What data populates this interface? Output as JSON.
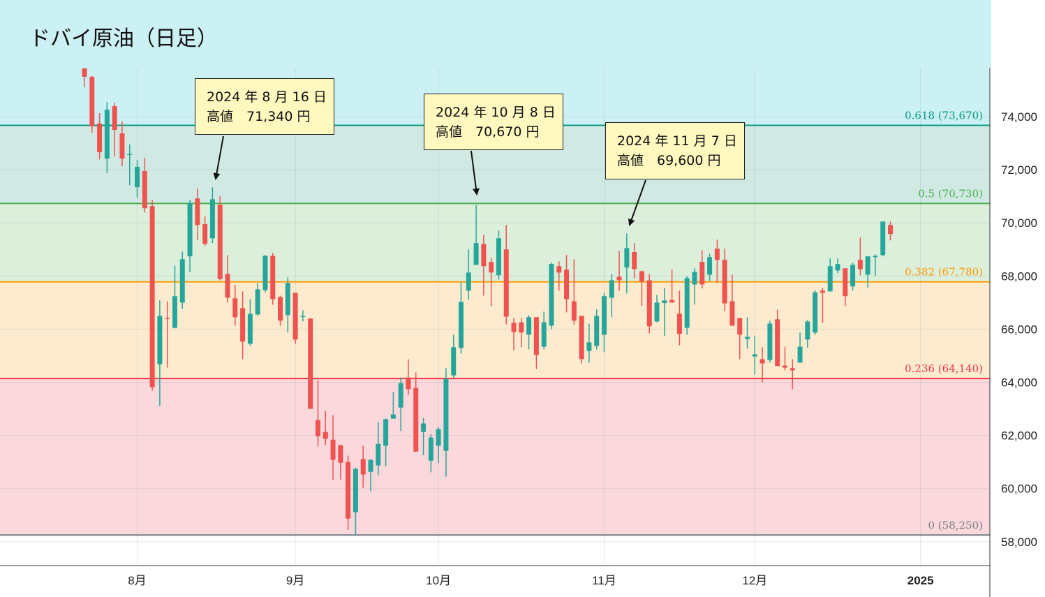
{
  "title": "ドバイ原油（日足）",
  "chart_data": {
    "type": "candlestick",
    "title": "ドバイ原油（日足）",
    "colors": {
      "up": "#26A69A",
      "down": "#EF5350"
    },
    "y_ticks": [
      58000,
      60000,
      62000,
      64000,
      66000,
      68000,
      70000,
      72000,
      74000
    ],
    "y_tick_labels": [
      "58,000",
      "60,000",
      "62,000",
      "64,000",
      "66,000",
      "68,000",
      "70,000",
      "72,000",
      "74,000"
    ],
    "ylim": [
      57000,
      76300
    ],
    "x_ticks": [
      {
        "label": "8月",
        "index": 7
      },
      {
        "label": "9月",
        "index": 28
      },
      {
        "label": "10月",
        "index": 47
      },
      {
        "label": "11月",
        "index": 69
      },
      {
        "label": "12月",
        "index": 89
      },
      {
        "label": "2025",
        "index": 111
      }
    ],
    "grid": true,
    "candle_fields": [
      "open",
      "high",
      "low",
      "close"
    ],
    "candles": [
      [
        75820,
        75820,
        75110,
        75500
      ],
      [
        75500,
        75530,
        73390,
        73630
      ],
      [
        73740,
        74130,
        72390,
        72660
      ],
      [
        72420,
        74550,
        71870,
        74260
      ],
      [
        74390,
        74530,
        72500,
        73500
      ],
      [
        73370,
        73820,
        72130,
        72420
      ],
      [
        72580,
        72950,
        71420,
        72600
      ],
      [
        71340,
        72370,
        70950,
        72110
      ],
      [
        71950,
        72450,
        70390,
        70550
      ],
      [
        70630,
        70870,
        63680,
        63820
      ],
      [
        64680,
        67080,
        63110,
        66500
      ],
      [
        66420,
        67050,
        64550,
        66400
      ],
      [
        66050,
        68390,
        66030,
        67240
      ],
      [
        67000,
        68920,
        66760,
        68630
      ],
      [
        68740,
        70870,
        68160,
        70740
      ],
      [
        70920,
        71290,
        69340,
        69920
      ],
      [
        69950,
        70240,
        69130,
        69210
      ],
      [
        69420,
        71340,
        69240,
        70890
      ],
      [
        70680,
        71000,
        67840,
        67890
      ],
      [
        68080,
        68790,
        67000,
        67180
      ],
      [
        67160,
        67660,
        66130,
        66450
      ],
      [
        66790,
        67420,
        64870,
        65530
      ],
      [
        65450,
        67130,
        65370,
        66580
      ],
      [
        66550,
        67740,
        66500,
        67500
      ],
      [
        67470,
        68790,
        67370,
        68760
      ],
      [
        68760,
        68870,
        66920,
        67130
      ],
      [
        67210,
        67260,
        66130,
        66320
      ],
      [
        66530,
        67950,
        65870,
        67740
      ],
      [
        67370,
        67370,
        65450,
        65610
      ],
      [
        66480,
        66710,
        66290,
        66500
      ],
      [
        66400,
        66400,
        63000,
        63000
      ],
      [
        62580,
        64080,
        61580,
        61970
      ],
      [
        62130,
        62920,
        61630,
        61870
      ],
      [
        61840,
        62760,
        60320,
        61080
      ],
      [
        61630,
        61660,
        60340,
        60970
      ],
      [
        61000,
        61240,
        58450,
        58870
      ],
      [
        59110,
        60790,
        58250,
        60740
      ],
      [
        61110,
        61610,
        60030,
        60530
      ],
      [
        60630,
        61110,
        59900,
        61080
      ],
      [
        60870,
        62500,
        60500,
        61680
      ],
      [
        61610,
        62630,
        60840,
        62610
      ],
      [
        62630,
        63630,
        62630,
        62790
      ],
      [
        63050,
        64180,
        62160,
        63970
      ],
      [
        64180,
        64870,
        63530,
        63740
      ],
      [
        63790,
        64370,
        61390,
        61390
      ],
      [
        62130,
        62660,
        61260,
        62450
      ],
      [
        61050,
        62050,
        60610,
        61920
      ],
      [
        61610,
        62320,
        60970,
        62240
      ],
      [
        61420,
        64530,
        60450,
        64130
      ],
      [
        64260,
        65790,
        64160,
        65320
      ],
      [
        65290,
        67760,
        65080,
        67030
      ],
      [
        67450,
        69000,
        67110,
        68130
      ],
      [
        68420,
        70670,
        68420,
        69240
      ],
      [
        69210,
        69550,
        67260,
        68370
      ],
      [
        68530,
        68680,
        66870,
        68130
      ],
      [
        68030,
        69710,
        67870,
        69420
      ],
      [
        69000,
        69920,
        66180,
        66470
      ],
      [
        66240,
        66420,
        65210,
        65890
      ],
      [
        66260,
        66420,
        65320,
        65870
      ],
      [
        65790,
        66530,
        65240,
        66450
      ],
      [
        66450,
        66450,
        64500,
        65030
      ],
      [
        65340,
        66660,
        65240,
        66260
      ],
      [
        66130,
        68500,
        66000,
        68450
      ],
      [
        68370,
        68550,
        67450,
        68130
      ],
      [
        68240,
        68790,
        66630,
        67130
      ],
      [
        67050,
        68630,
        66160,
        66320
      ],
      [
        66500,
        66500,
        64710,
        64870
      ],
      [
        65180,
        66210,
        64740,
        65500
      ],
      [
        65370,
        66740,
        65240,
        66500
      ],
      [
        65790,
        67370,
        65130,
        67240
      ],
      [
        67180,
        68080,
        66450,
        67840
      ],
      [
        67970,
        68950,
        67450,
        67840
      ],
      [
        68320,
        69600,
        67340,
        69050
      ],
      [
        68900,
        69240,
        67920,
        68260
      ],
      [
        68180,
        68210,
        66870,
        67790
      ],
      [
        67840,
        68080,
        65840,
        66110
      ],
      [
        66290,
        67290,
        66260,
        67000
      ],
      [
        66980,
        67550,
        65740,
        67080
      ],
      [
        67100,
        68240,
        67000,
        67000
      ],
      [
        66580,
        67450,
        65390,
        65820
      ],
      [
        66050,
        68000,
        65790,
        67920
      ],
      [
        67680,
        68290,
        66920,
        68160
      ],
      [
        68530,
        68970,
        67530,
        67680
      ],
      [
        68050,
        68840,
        67820,
        68710
      ],
      [
        69030,
        69370,
        67740,
        68610
      ],
      [
        68610,
        69030,
        66680,
        66970
      ],
      [
        67050,
        68050,
        66130,
        66130
      ],
      [
        66420,
        66420,
        64870,
        65790
      ],
      [
        65630,
        66450,
        65260,
        65710
      ],
      [
        64970,
        65760,
        64290,
        65050
      ],
      [
        64870,
        65320,
        64000,
        64710
      ],
      [
        64840,
        66320,
        64740,
        66210
      ],
      [
        66370,
        66740,
        64610,
        64610
      ],
      [
        64630,
        65340,
        64450,
        64550
      ],
      [
        64530,
        64870,
        63740,
        64450
      ],
      [
        64740,
        65870,
        64740,
        65340
      ],
      [
        65610,
        66340,
        65290,
        66290
      ],
      [
        65870,
        67470,
        65790,
        67390
      ],
      [
        67450,
        67550,
        66240,
        67370
      ],
      [
        67420,
        68660,
        67420,
        68370
      ],
      [
        68210,
        68660,
        68110,
        68450
      ],
      [
        68290,
        68290,
        66870,
        67240
      ],
      [
        67610,
        68500,
        67450,
        68420
      ],
      [
        68610,
        69450,
        68030,
        68260
      ],
      [
        68050,
        68740,
        67550,
        68740
      ],
      [
        68710,
        68810,
        68000,
        68760
      ],
      [
        68790,
        70050,
        68740,
        70050
      ],
      [
        69920,
        70050,
        69340,
        69580
      ]
    ],
    "fib_levels": [
      {
        "ratio": "0.618",
        "value": 73670,
        "label": "0.618 (73,670)",
        "color": "#089981",
        "fill": "#D0EAE3"
      },
      {
        "ratio": "0.5",
        "value": 70730,
        "label": "0.5 (70,730)",
        "color": "#4CAF50",
        "fill": "#DCEFDB"
      },
      {
        "ratio": "0.382",
        "value": 67780,
        "label": "0.382 (67,780)",
        "color": "#FF9800",
        "fill": "#FDEBD0"
      },
      {
        "ratio": "0.236",
        "value": 64140,
        "label": "0.236 (64,140)",
        "color": "#F23645",
        "fill": "#FAD8DC"
      },
      {
        "ratio": "0",
        "value": 58250,
        "label": "0 (58,250)",
        "color": "#787B86",
        "fill": "#FFFFFF"
      }
    ],
    "top_band_fill": "#CCF1F4",
    "annotations": [
      {
        "line1": "2024 年 8 月 16 日",
        "line2": "高値　71,340 円",
        "candle": 17,
        "value": 71340
      },
      {
        "line1": "2024 年 10 月 8 日",
        "line2": "高値　70,670 円",
        "candle": 52,
        "value": 70670
      },
      {
        "line1": "2024 年 11 月 7 日",
        "line2": "高値　69,600 円",
        "candle": 72,
        "value": 69600
      }
    ]
  }
}
